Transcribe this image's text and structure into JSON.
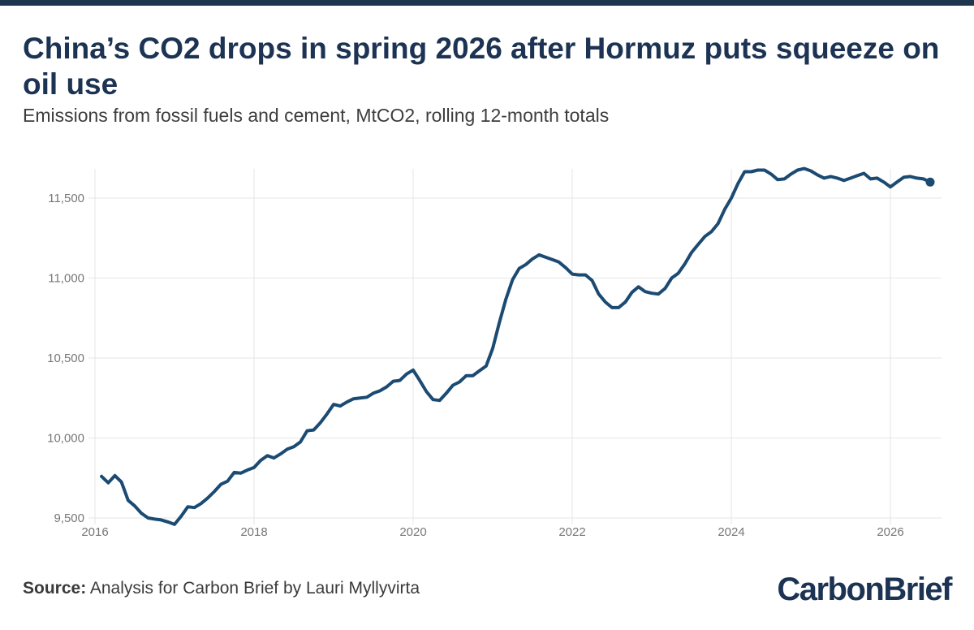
{
  "header": {
    "title": "China’s CO2 drops in spring 2026 after Hormuz puts squeeze on oil use",
    "subtitle": "Emissions from fossil fuels and cement, MtCO2, rolling 12-month totals"
  },
  "footer": {
    "source_label": "Source:",
    "source_text": " Analysis for Carbon Brief by Lauri Myllyvirta",
    "brand": "CarbonBrief"
  },
  "colors": {
    "line": "#1b4a72",
    "title": "#1d3354",
    "brand": "#1d3354"
  },
  "chart_data": {
    "type": "line",
    "title": "China’s CO2 drops in spring 2026 after Hormuz puts squeeze on oil use",
    "subtitle": "Emissions from fossil fuels and cement, MtCO2, rolling 12-month totals",
    "xlabel": "",
    "ylabel": "",
    "xlim": [
      2016,
      2026.6
    ],
    "ylim": [
      9450,
      11700
    ],
    "x_ticks": [
      2016,
      2018,
      2020,
      2022,
      2024,
      2026
    ],
    "x_tick_labels": [
      "2016",
      "2018",
      "2020",
      "2022",
      "2024",
      "2026"
    ],
    "y_ticks": [
      9500,
      10000,
      10500,
      11000,
      11500
    ],
    "y_tick_labels": [
      "9,500",
      "10,000",
      "10,500",
      "11,000",
      "11,500"
    ],
    "grid": "on",
    "legend": "none",
    "end_marker": true,
    "x": [
      2016.083,
      2016.167,
      2016.25,
      2016.333,
      2016.417,
      2016.5,
      2016.583,
      2016.667,
      2016.75,
      2016.833,
      2016.917,
      2017.0,
      2017.083,
      2017.167,
      2017.25,
      2017.333,
      2017.417,
      2017.5,
      2017.583,
      2017.667,
      2017.75,
      2017.833,
      2017.917,
      2018.0,
      2018.083,
      2018.167,
      2018.25,
      2018.333,
      2018.417,
      2018.5,
      2018.583,
      2018.667,
      2018.75,
      2018.833,
      2018.917,
      2019.0,
      2019.083,
      2019.167,
      2019.25,
      2019.333,
      2019.417,
      2019.5,
      2019.583,
      2019.667,
      2019.75,
      2019.833,
      2019.917,
      2020.0,
      2020.083,
      2020.167,
      2020.25,
      2020.333,
      2020.417,
      2020.5,
      2020.583,
      2020.667,
      2020.75,
      2020.833,
      2020.917,
      2021.0,
      2021.083,
      2021.167,
      2021.25,
      2021.333,
      2021.417,
      2021.5,
      2021.583,
      2021.667,
      2021.75,
      2021.833,
      2021.917,
      2022.0,
      2022.083,
      2022.167,
      2022.25,
      2022.333,
      2022.417,
      2022.5,
      2022.583,
      2022.667,
      2022.75,
      2022.833,
      2022.917,
      2023.0,
      2023.083,
      2023.167,
      2023.25,
      2023.333,
      2023.417,
      2023.5,
      2023.583,
      2023.667,
      2023.75,
      2023.833,
      2023.917,
      2024.0,
      2024.083,
      2024.167,
      2024.25,
      2024.333,
      2024.417,
      2024.5,
      2024.583,
      2024.667,
      2024.75,
      2024.833,
      2024.917,
      2025.0,
      2025.083,
      2025.167,
      2025.25,
      2025.333,
      2025.417,
      2025.5,
      2025.583,
      2025.667,
      2025.75,
      2025.833,
      2025.917,
      2026.0,
      2026.083,
      2026.167,
      2026.25,
      2026.333,
      2026.417,
      2026.5
    ],
    "series": [
      {
        "values": [
          9760,
          9720,
          9765,
          9725,
          9610,
          9575,
          9530,
          9500,
          9493,
          9488,
          9475,
          9460,
          9510,
          9570,
          9565,
          9590,
          9625,
          9665,
          9710,
          9730,
          9785,
          9780,
          9800,
          9815,
          9860,
          9890,
          9875,
          9900,
          9930,
          9945,
          9975,
          10045,
          10050,
          10095,
          10150,
          10210,
          10200,
          10225,
          10245,
          10250,
          10255,
          10280,
          10295,
          10320,
          10355,
          10360,
          10400,
          10425,
          10360,
          10290,
          10240,
          10235,
          10280,
          10330,
          10350,
          10390,
          10390,
          10420,
          10450,
          10560,
          10720,
          10870,
          10990,
          11060,
          11085,
          11120,
          11145,
          11130,
          11115,
          11100,
          11065,
          11025,
          11020,
          11020,
          10985,
          10900,
          10850,
          10815,
          10815,
          10850,
          10910,
          10945,
          10915,
          10905,
          10900,
          10935,
          11000,
          11030,
          11090,
          11160,
          11210,
          11260,
          11290,
          11340,
          11430,
          11500,
          11590,
          11665,
          11665,
          11675,
          11675,
          11650,
          11615,
          11620,
          11650,
          11675,
          11685,
          11670,
          11645,
          11625,
          11635,
          11625,
          11610,
          11625,
          11640,
          11655,
          11620,
          11625,
          11600,
          11570,
          11600,
          11630,
          11635,
          11625,
          11620,
          11600
        ]
      }
    ]
  }
}
